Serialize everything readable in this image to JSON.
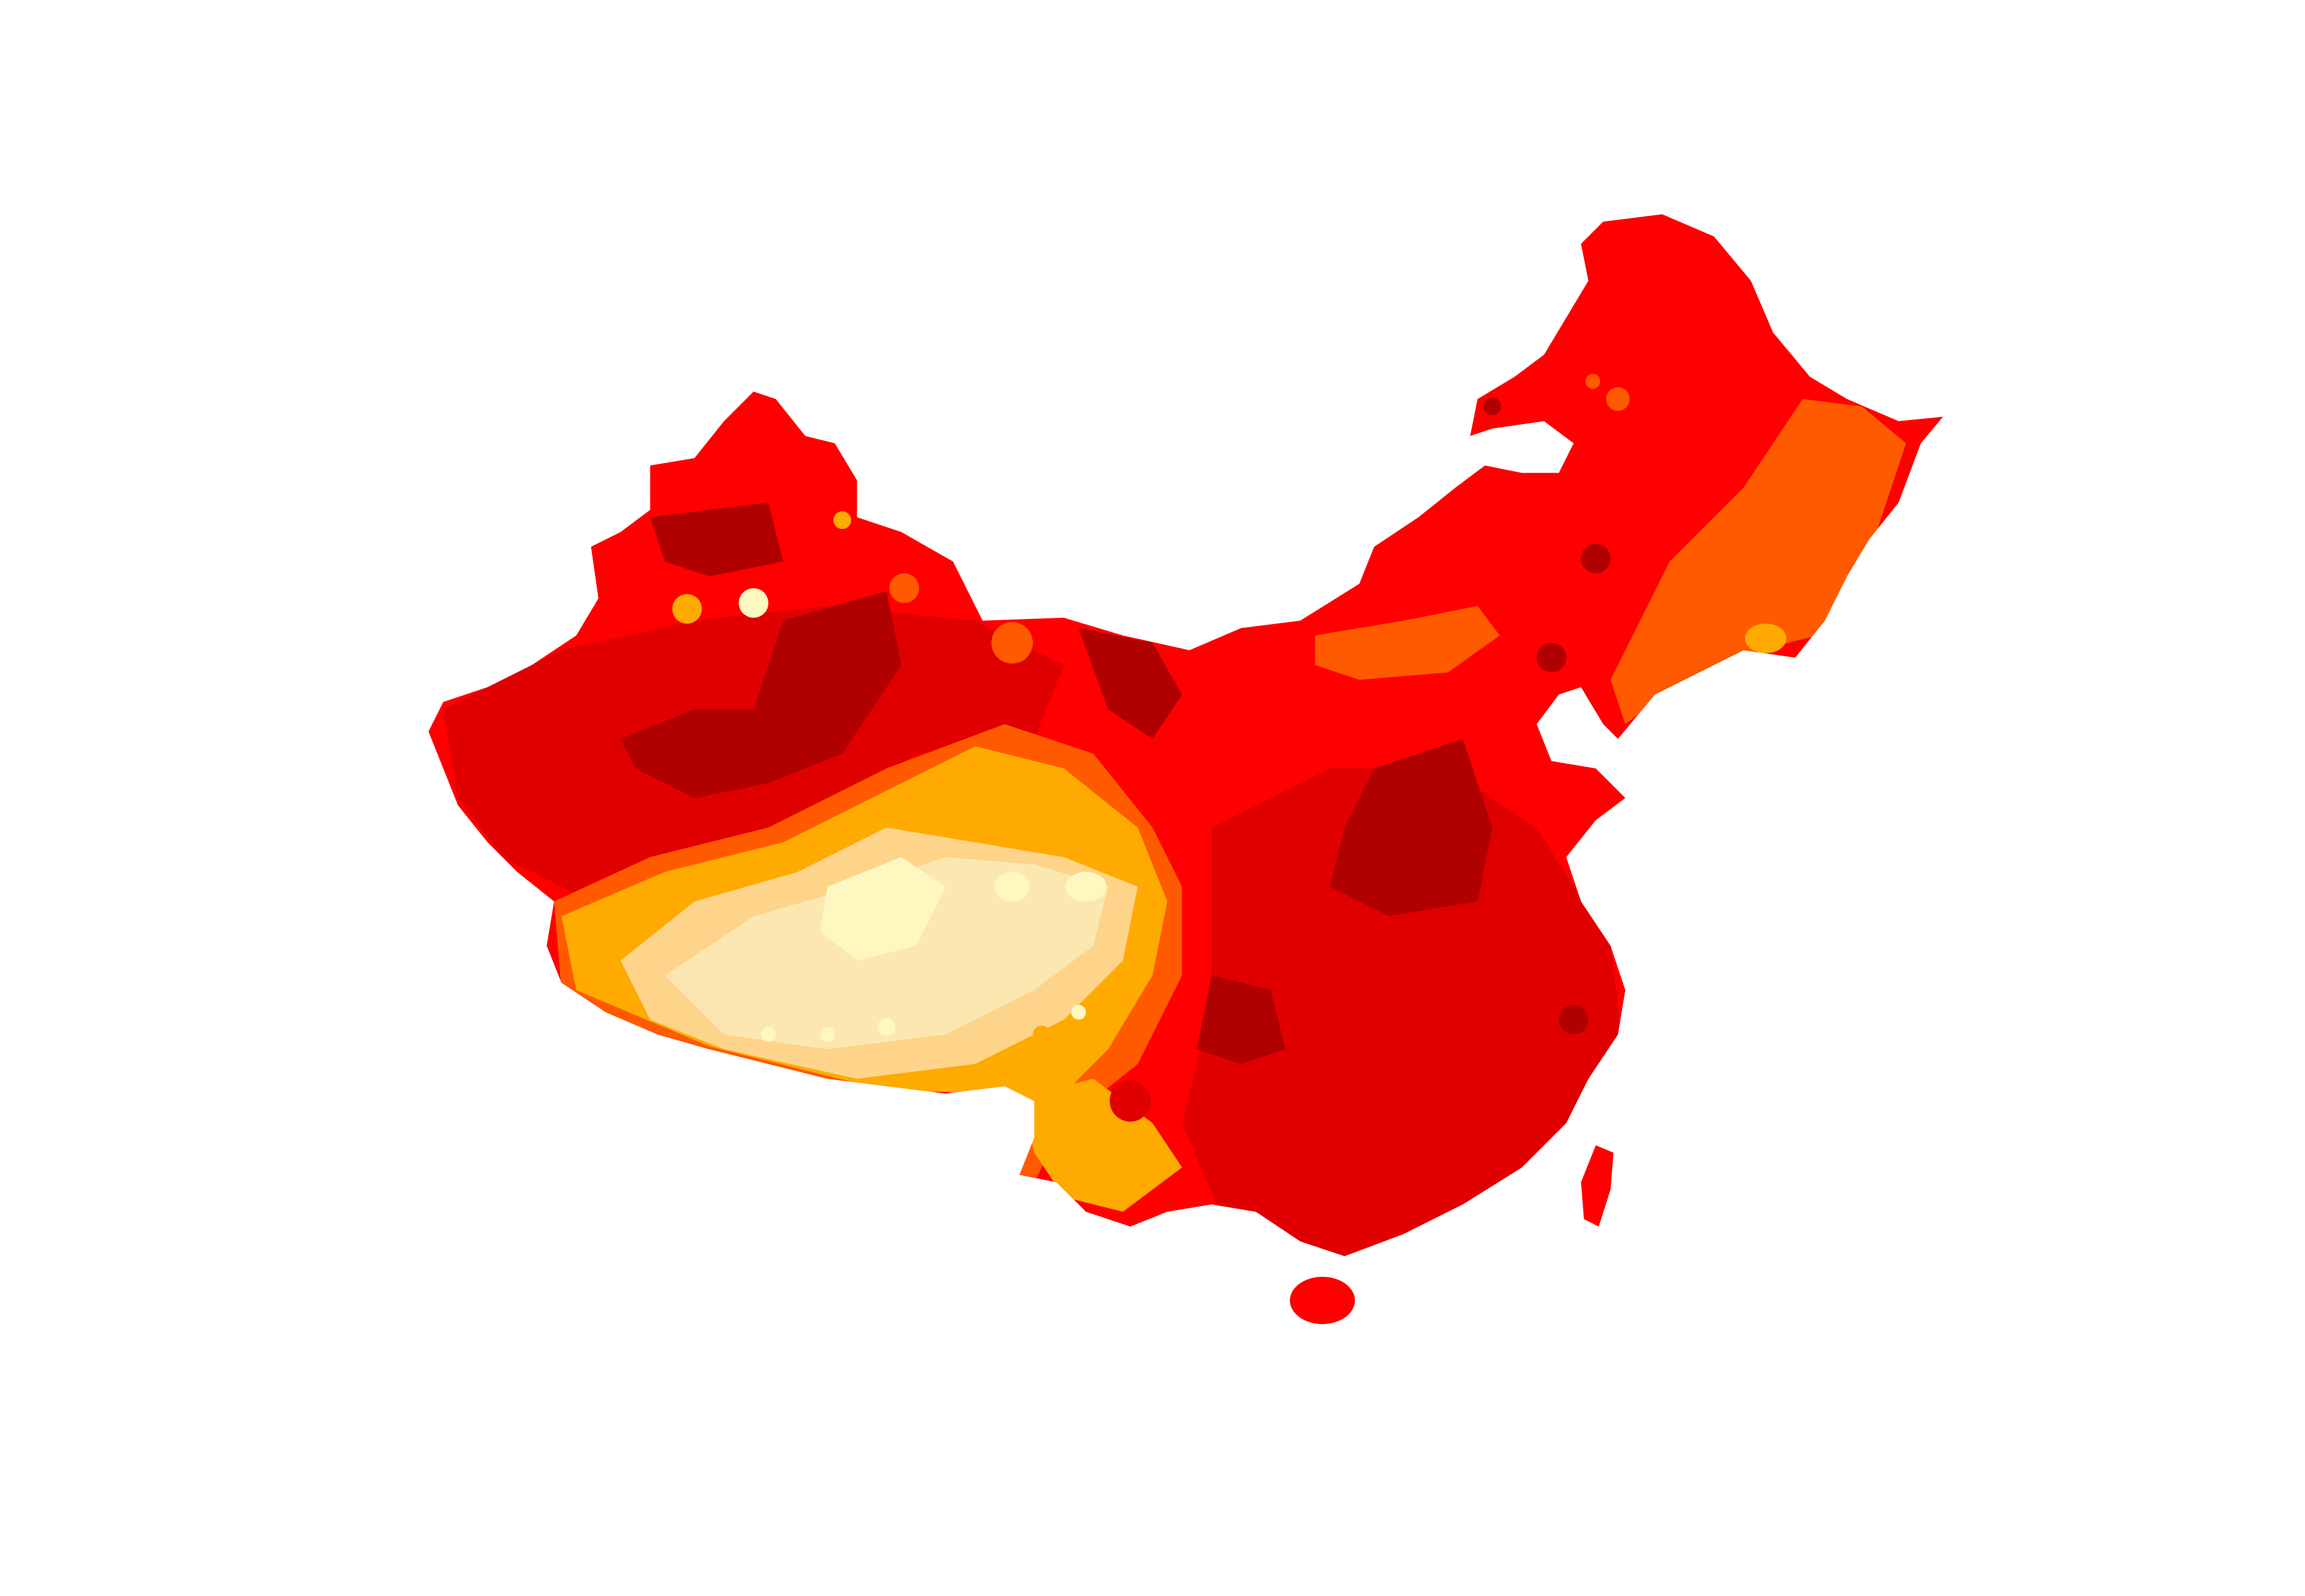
{
  "map": {
    "subject": "China",
    "style": "filled-contour",
    "palette": {
      "darkest": "#b00000",
      "dark": "#e00000",
      "red": "#ff0000",
      "orange_red": "#ff5a00",
      "orange": "#ffaa00",
      "light_orange": "#fdd48a",
      "pale": "#fde7b0",
      "palest": "#fff7c0",
      "background": "#ffffff"
    },
    "band_order": [
      "palest",
      "pale",
      "light_orange",
      "orange",
      "orange_red",
      "red",
      "dark",
      "darkest"
    ],
    "legend": null,
    "title": null
  }
}
